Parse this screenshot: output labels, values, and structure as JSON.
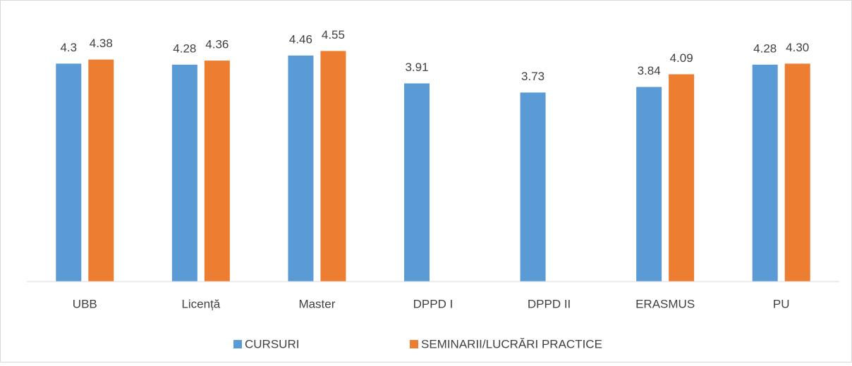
{
  "chart_data": {
    "type": "bar",
    "categories": [
      "UBB",
      "Licență",
      "Master",
      "DPPD I",
      "DPPD II",
      "ERASMUS",
      "PU"
    ],
    "series": [
      {
        "name": "CURSURI",
        "color": "#5b9bd5",
        "values": [
          4.3,
          4.28,
          4.46,
          3.91,
          3.73,
          3.84,
          4.28
        ]
      },
      {
        "name": "SEMINARII/LUCRĂRI PRACTICE",
        "color": "#ed7d31",
        "values": [
          4.38,
          4.36,
          4.55,
          null,
          null,
          4.09,
          4.3
        ],
        "value_labels": [
          "4.38",
          "4.36",
          "4.55",
          null,
          null,
          "4.09",
          "4.30"
        ]
      }
    ],
    "ylim": [
      0,
      5
    ],
    "legend": "bottom"
  }
}
